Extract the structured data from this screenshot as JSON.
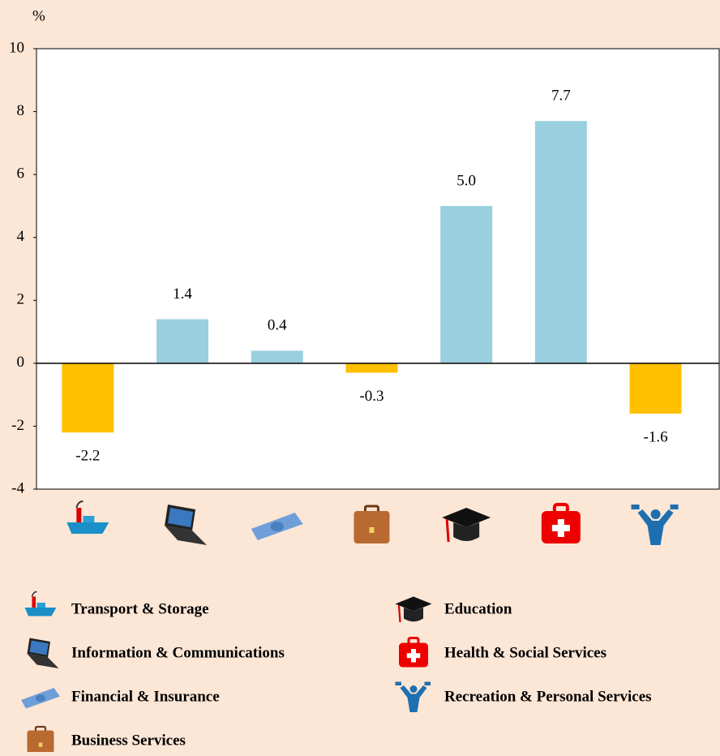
{
  "chart_data": {
    "type": "bar",
    "y_label": "%",
    "categories": [
      "Transport & Storage",
      "Information & Communications",
      "Financial & Insurance",
      "Business Services",
      "Education",
      "Health & Social Services",
      "Recreation & Personal Services"
    ],
    "values": [
      -2.2,
      1.4,
      0.4,
      -0.3,
      5.0,
      7.7,
      -1.6
    ],
    "value_labels": [
      "-2.2",
      "1.4",
      "0.4",
      "-0.3",
      "5.0",
      "7.7",
      "-1.6"
    ],
    "colors": [
      "#ffc000",
      "#9acfe0",
      "#9acfe0",
      "#ffc000",
      "#9acfe0",
      "#9acfe0",
      "#ffc000"
    ],
    "ylim": [
      -4,
      10
    ],
    "yticks": [
      -4,
      -2,
      0,
      2,
      4,
      6,
      8,
      10
    ]
  }
}
